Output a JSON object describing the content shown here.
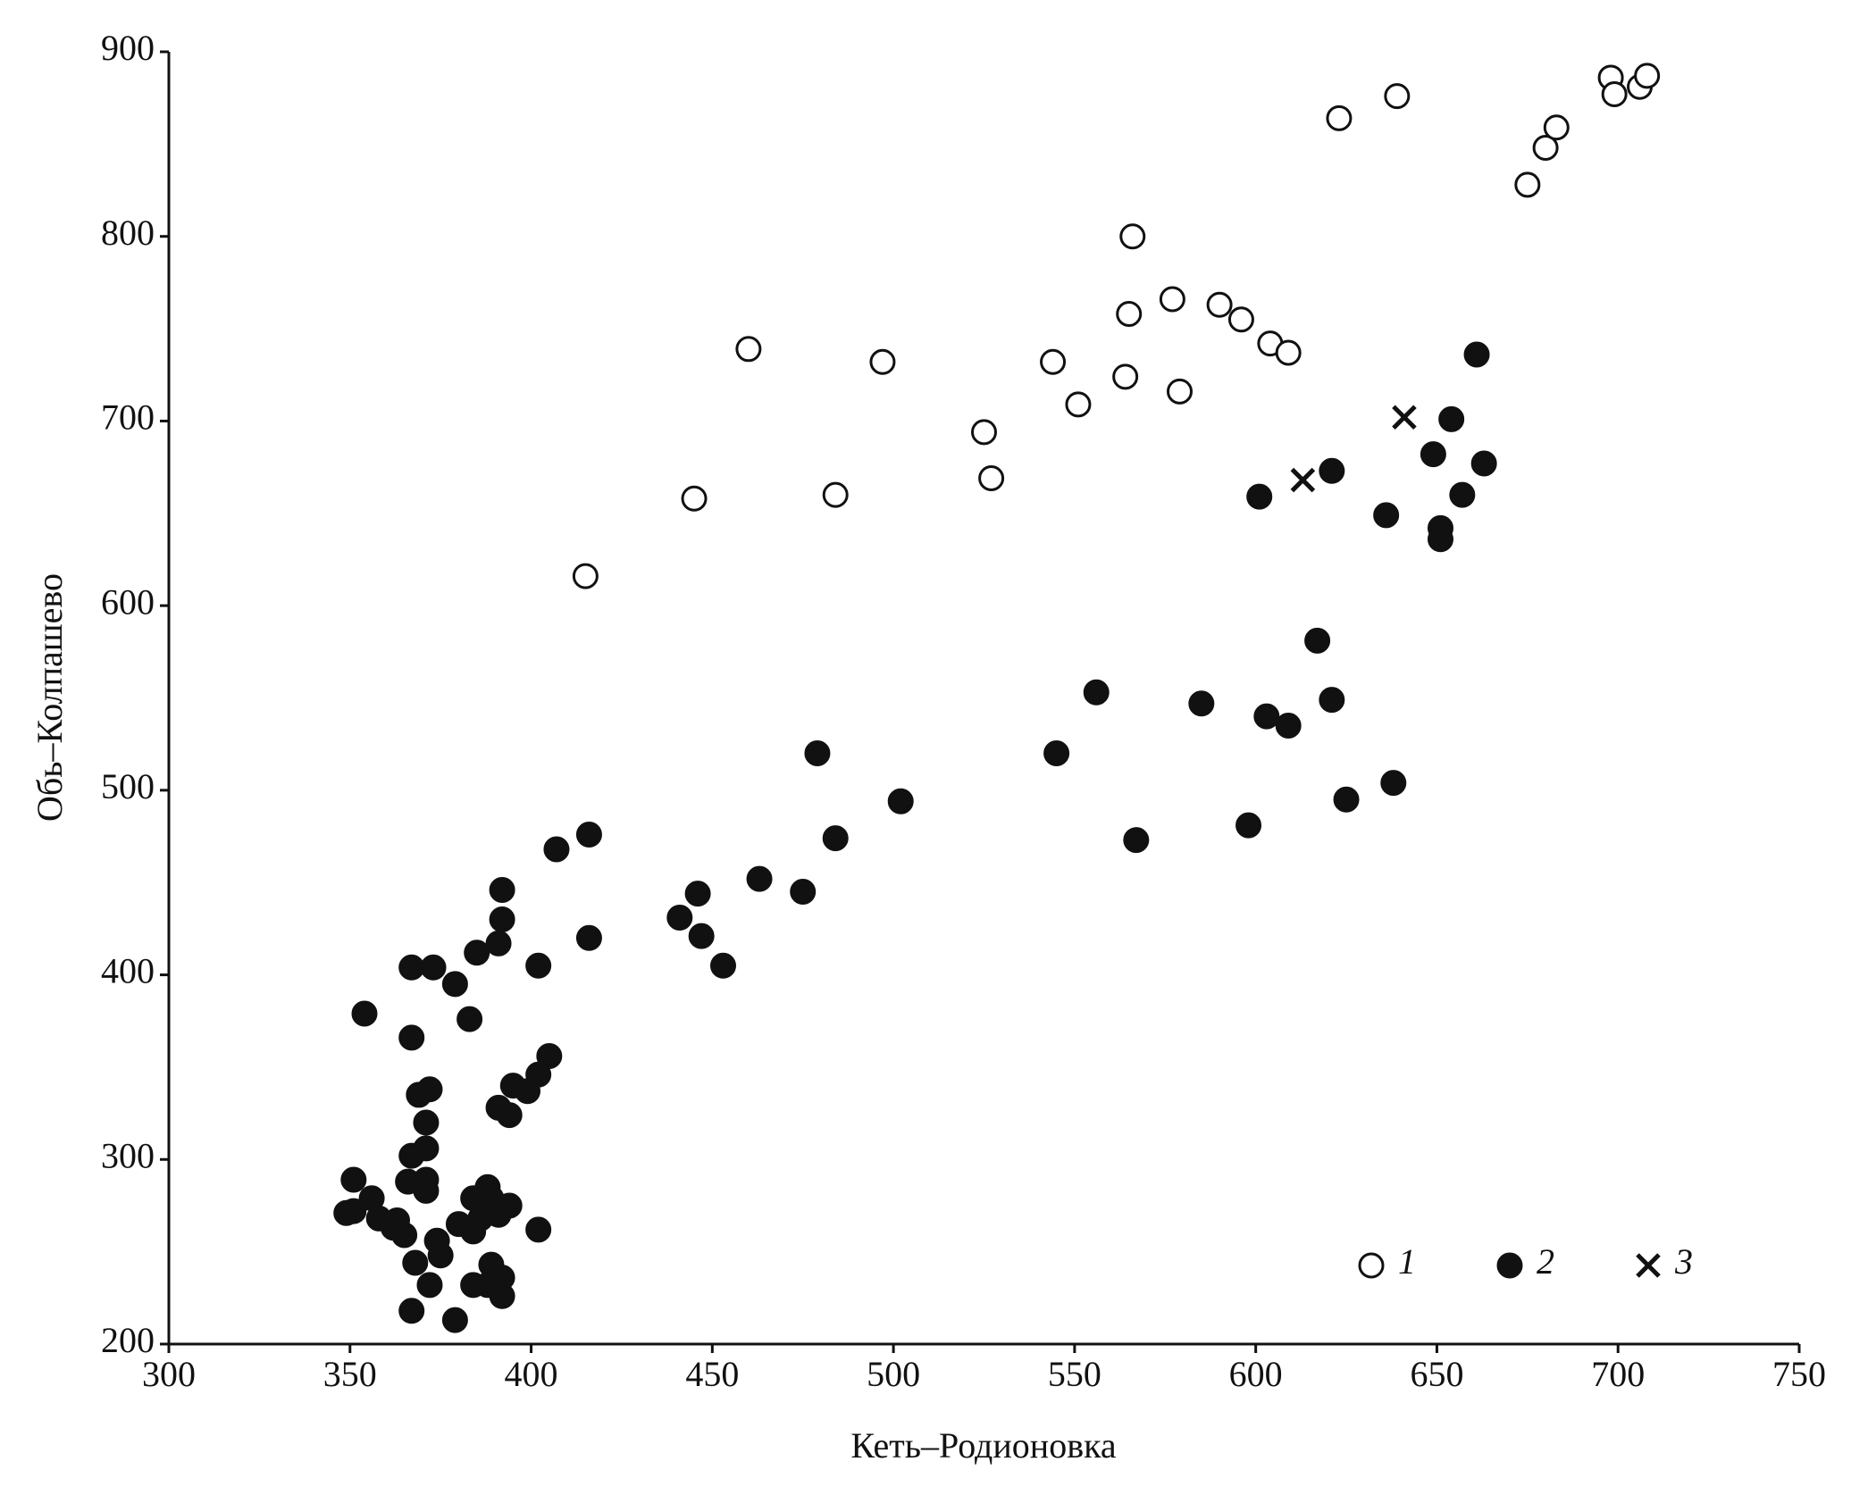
{
  "chart_data": {
    "type": "scatter",
    "x_label": "Кеть–Родионовка",
    "y_label": "Обь–Колпашево",
    "xlim": [
      300,
      750
    ],
    "xticks": [
      300,
      350,
      400,
      450,
      500,
      550,
      600,
      650,
      700,
      750
    ],
    "ylim": [
      200,
      900
    ],
    "yticks": [
      200,
      300,
      400,
      500,
      600,
      700,
      800,
      900
    ],
    "grid": false,
    "legend": "lower right",
    "series": [
      {
        "name": "1",
        "color": "#111111",
        "marker": "open-circle",
        "x": [
          415,
          445,
          460,
          484,
          497,
          525,
          527,
          544,
          551,
          564,
          565,
          566,
          577,
          579,
          590,
          596,
          604,
          609,
          623,
          639,
          675,
          680,
          683,
          698,
          699,
          706,
          708
        ],
        "values": [
          616,
          658,
          739,
          660,
          732,
          694,
          669,
          732,
          709,
          724,
          758,
          800,
          766,
          716,
          763,
          755,
          742,
          737,
          864,
          876,
          828,
          848,
          859,
          886,
          877,
          881,
          887
        ]
      },
      {
        "name": "2",
        "color": "#111111",
        "marker": "filled-circle",
        "x": [
          661,
          654,
          649,
          663,
          621,
          601,
          657,
          636,
          651,
          651,
          617,
          556,
          585,
          621,
          603,
          609,
          479,
          545,
          638,
          502,
          625,
          598,
          567,
          416,
          407,
          484,
          392,
          463,
          475,
          446,
          441,
          392,
          416,
          447,
          391,
          385,
          453,
          402,
          367,
          373,
          379,
          354,
          383,
          367,
          405,
          402,
          395,
          399,
          372,
          369,
          391,
          394,
          371,
          371,
          367,
          371,
          366,
          351,
          388,
          384,
          356,
          371,
          389,
          394,
          351,
          349,
          363,
          358,
          362,
          386,
          391,
          380,
          384,
          365,
          402,
          374,
          375,
          368,
          389,
          392,
          388,
          384,
          372,
          392,
          367,
          379
        ],
        "values": [
          736,
          701,
          682,
          677,
          673,
          659,
          660,
          649,
          642,
          636,
          581,
          553,
          547,
          549,
          540,
          535,
          520,
          520,
          504,
          494,
          495,
          481,
          473,
          476,
          468,
          474,
          446,
          452,
          445,
          444,
          431,
          430,
          420,
          421,
          417,
          412,
          405,
          405,
          404,
          404,
          395,
          379,
          376,
          366,
          356,
          346,
          340,
          337,
          338,
          335,
          328,
          324,
          320,
          306,
          302,
          289,
          288,
          289,
          285,
          279,
          279,
          283,
          279,
          275,
          272,
          271,
          267,
          268,
          263,
          268,
          270,
          265,
          261,
          259,
          262,
          256,
          248,
          244,
          243,
          236,
          232,
          232,
          232,
          226,
          218,
          213
        ]
      },
      {
        "name": "3",
        "color": "#111111",
        "marker": "x",
        "x": [
          613,
          641
        ],
        "values": [
          668,
          702
        ]
      }
    ]
  }
}
